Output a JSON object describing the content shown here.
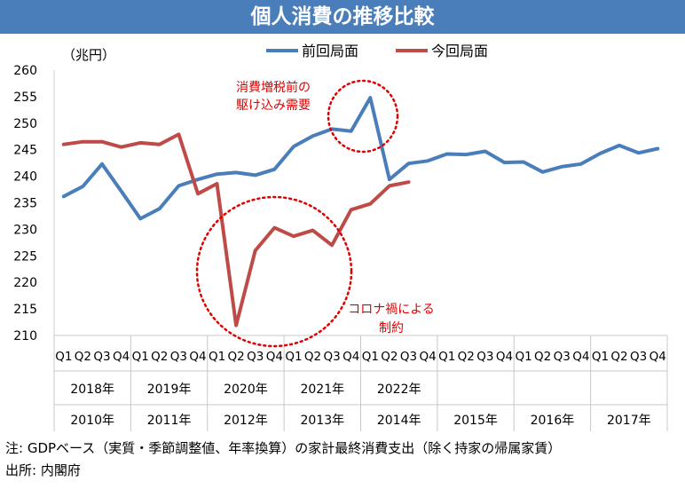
{
  "title": "個人消費の推移比較",
  "footer": {
    "note": "注: GDPベース（実質・季節調整値、年率換算）の家計最終消費支出（除く持家の帰属家賃）",
    "source": "出所: 内閣府"
  },
  "chart_data": {
    "type": "line",
    "unit_label": "（兆円）",
    "ylim": [
      210,
      260
    ],
    "yticks": [
      210,
      215,
      220,
      225,
      230,
      235,
      240,
      245,
      250,
      255,
      260
    ],
    "grid": false,
    "legend_position": "top",
    "quarter_labels": [
      "Q1",
      "Q2",
      "Q3",
      "Q4",
      "Q1",
      "Q2",
      "Q3",
      "Q4",
      "Q1",
      "Q2",
      "Q3",
      "Q4",
      "Q1",
      "Q2",
      "Q3",
      "Q4",
      "Q1",
      "Q2",
      "Q3",
      "Q4",
      "Q1",
      "Q2",
      "Q3",
      "Q4",
      "Q1",
      "Q2",
      "Q3",
      "Q4",
      "Q1",
      "Q2",
      "Q3",
      "Q4"
    ],
    "year_labels_current": [
      "2018年",
      "2019年",
      "2020年",
      "2021年",
      "2022年"
    ],
    "year_labels_previous": [
      "2010年",
      "2011年",
      "2012年",
      "2013年",
      "2014年",
      "2015年",
      "2016年",
      "2017年"
    ],
    "series": [
      {
        "name": "前回局面",
        "color": "#4a7ebb",
        "values": [
          236.2,
          238.1,
          242.3,
          237.2,
          232.0,
          233.9,
          238.2,
          239.4,
          240.4,
          240.7,
          240.2,
          241.3,
          245.6,
          247.6,
          248.9,
          248.5,
          254.8,
          239.4,
          242.4,
          242.9,
          244.2,
          244.1,
          244.7,
          242.6,
          242.7,
          240.8,
          241.8,
          242.3,
          244.3,
          245.8,
          244.4,
          245.2
        ]
      },
      {
        "name": "今回局面",
        "color": "#be4b48",
        "values": [
          246.0,
          246.5,
          246.5,
          245.5,
          246.3,
          246.0,
          247.9,
          236.7,
          238.6,
          211.9,
          226.0,
          230.3,
          228.7,
          229.8,
          227.0,
          233.7,
          234.8,
          238.2,
          238.9
        ]
      }
    ],
    "annotations": [
      {
        "text": [
          "消費増税前の",
          "駆け込み需要"
        ],
        "color": "#e00000"
      },
      {
        "text": [
          "コロナ禍による",
          "制約"
        ],
        "color": "#e00000"
      }
    ]
  }
}
